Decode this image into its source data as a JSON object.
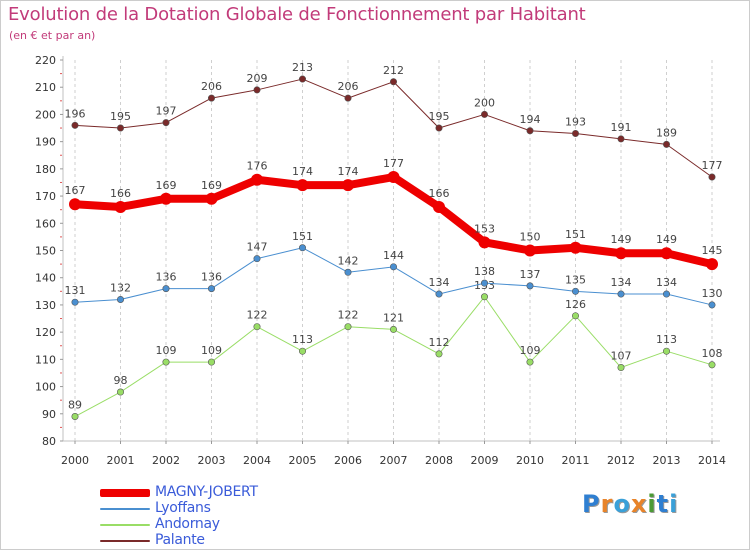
{
  "title": "Evolution de la Dotation Globale de Fonctionnement par Habitant",
  "subtitle": "(en € et par an)",
  "logo": {
    "text": "Proxiti",
    "letters": [
      "P",
      "r",
      "o",
      "x",
      "i",
      "t",
      "i"
    ],
    "colors": [
      "#2f7fd1",
      "#e8842a",
      "#3aa0d8",
      "#e8842a",
      "#4b9a35",
      "#2f7fd1",
      "#3aa0d8"
    ]
  },
  "chart_data": {
    "type": "line",
    "x": [
      "2000",
      "2001",
      "2002",
      "2003",
      "2004",
      "2005",
      "2006",
      "2007",
      "2008",
      "2009",
      "2010",
      "2011",
      "2012",
      "2013",
      "2014"
    ],
    "ylim": [
      80,
      220
    ],
    "yticks": [
      80,
      90,
      100,
      110,
      120,
      130,
      140,
      150,
      160,
      170,
      180,
      190,
      200,
      210,
      220
    ],
    "grid": "vertical dashed",
    "series": [
      {
        "name": "MAGNY-JOBERT",
        "color": "#ee0000",
        "width": 8,
        "values": [
          167,
          166,
          169,
          169,
          176,
          174,
          174,
          177,
          166,
          153,
          150,
          151,
          149,
          149,
          145
        ]
      },
      {
        "name": "Lyoffans",
        "color": "#4a8fd0",
        "width": 1,
        "values": [
          131,
          132,
          136,
          136,
          147,
          151,
          142,
          144,
          134,
          138,
          137,
          135,
          134,
          134,
          130
        ]
      },
      {
        "name": "Andornay",
        "color": "#99dd66",
        "width": 1,
        "values": [
          89,
          98,
          109,
          109,
          122,
          113,
          122,
          121,
          112,
          133,
          109,
          126,
          107,
          113,
          108
        ]
      },
      {
        "name": "Palante",
        "color": "#7a2a2a",
        "width": 1,
        "values": [
          196,
          195,
          197,
          206,
          209,
          213,
          206,
          212,
          195,
          200,
          194,
          193,
          191,
          189,
          177
        ]
      }
    ]
  }
}
